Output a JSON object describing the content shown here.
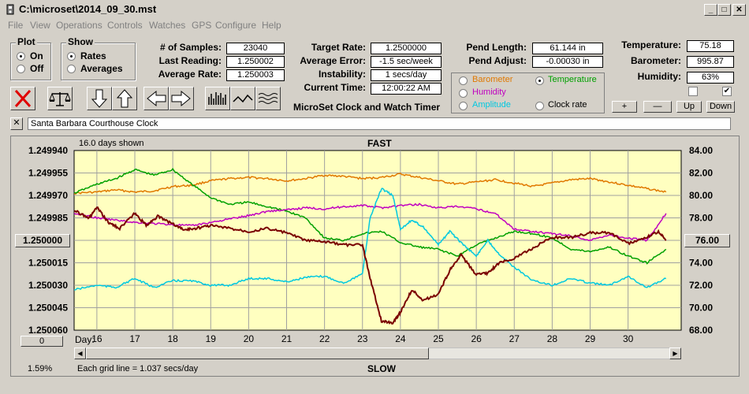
{
  "window": {
    "title": "C:\\microset\\2014_09_30.mst",
    "min": "_",
    "max": "□",
    "close": "✕"
  },
  "menu": [
    "File",
    "View",
    "Operations",
    "Controls",
    "Watches",
    "GPS",
    "Configure",
    "Help"
  ],
  "plot_group": {
    "title": "Plot",
    "on": "On",
    "off": "Off",
    "selected": "On"
  },
  "show_group": {
    "title": "Show",
    "rates": "Rates",
    "averages": "Averages",
    "selected": "Rates"
  },
  "stats": {
    "samples_label": "# of Samples:",
    "samples": "23040",
    "last_label": "Last Reading:",
    "last": "1.250002",
    "avg_label": "Average Rate:",
    "avg": "1.250003"
  },
  "rates": {
    "target_label": "Target Rate:",
    "target": "1.2500000",
    "avgerr_label": "Average Error:",
    "avgerr": "-1.5 sec/week",
    "instab_label": "Instability:",
    "instab": "1 secs/day",
    "time_label": "Current Time:",
    "time": "12:00:22 AM"
  },
  "app_caption": "MicroSet Clock and Watch Timer",
  "pendulum": {
    "length_label": "Pend Length:",
    "length": "61.144 in",
    "adjust_label": "Pend Adjust:",
    "adjust": "-0.00030 in"
  },
  "sensor_select": {
    "barometer": "Barometer",
    "temperature": "Temperature",
    "humidity": "Humidity",
    "amplitude": "Amplitude",
    "clockrate": "Clock rate",
    "selected": "Temperature",
    "colors": {
      "barometer": "#e07800",
      "temperature": "#00a000",
      "humidity": "#c000c0",
      "amplitude": "#00c8e0",
      "clockrate": "#000000"
    }
  },
  "environment": {
    "temp_label": "Temperature:",
    "temp": "75.18",
    "baro_label": "Barometer:",
    "baro": "995.87",
    "hum_label": "Humidity:",
    "hum": "63%",
    "check1": false,
    "check2": true
  },
  "scale_buttons": {
    "plus": "+",
    "minus": "—",
    "up": "Up",
    "down": "Down"
  },
  "clock_name": "Santa Barbara Courthouse Clock",
  "graph": {
    "days_shown": "16.0 days shown",
    "fast": "FAST",
    "slow": "SLOW",
    "center_left": "1.250000",
    "center_right": "76.00",
    "bottom_left_btn": "0",
    "percent": "1.59%",
    "grid_note": "Each grid line = 1.037 secs/day",
    "day_label": "Day:"
  },
  "chart_data": {
    "type": "line",
    "xlabel": "Day:",
    "x_ticks": [
      16,
      17,
      18,
      19,
      20,
      21,
      22,
      23,
      24,
      25,
      26,
      27,
      28,
      29,
      30
    ],
    "xlim": [
      15.4,
      31.4
    ],
    "y_left": {
      "ticks": [
        "1.249940",
        "1.249955",
        "1.249970",
        "1.249985",
        "1.250000",
        "1.250015",
        "1.250030",
        "1.250045",
        "1.250060"
      ],
      "lim": [
        1.24994,
        1.25006
      ]
    },
    "y_right": {
      "ticks": [
        "84.00",
        "82.00",
        "80.00",
        "78.00",
        "76.00",
        "74.00",
        "72.00",
        "70.00",
        "68.00"
      ],
      "lim": [
        68,
        84
      ]
    },
    "series": [
      {
        "name": "Barometer",
        "color": "#e07800",
        "axis": "right",
        "x": [
          15.4,
          16,
          16.5,
          17,
          17.5,
          18,
          18.5,
          19,
          19.5,
          20,
          20.5,
          21,
          21.5,
          22,
          22.5,
          23,
          23.5,
          24,
          24.5,
          25,
          25.5,
          26,
          26.5,
          27,
          27.5,
          28,
          28.5,
          29,
          29.5,
          30,
          30.5,
          31
        ],
        "y": [
          80.2,
          80.3,
          80.5,
          80.3,
          80.4,
          80.8,
          80.9,
          81.3,
          81.5,
          81.6,
          81.5,
          81.3,
          81.5,
          81.8,
          81.7,
          81.5,
          81.6,
          81.9,
          81.6,
          81.3,
          81.0,
          81.2,
          81.4,
          81.1,
          80.8,
          81.1,
          81.4,
          81.5,
          81.2,
          80.9,
          80.6,
          80.3
        ]
      },
      {
        "name": "Temperature",
        "color": "#00a000",
        "axis": "right",
        "x": [
          15.4,
          16,
          16.5,
          17,
          17.5,
          18,
          18.5,
          19,
          19.5,
          20,
          20.5,
          21,
          21.5,
          22,
          22.5,
          23,
          23.5,
          24,
          24.5,
          25,
          25.5,
          26,
          26.5,
          27,
          27.5,
          28,
          28.5,
          29,
          29.5,
          30,
          30.5,
          31
        ],
        "y": [
          80.2,
          81.0,
          81.5,
          82.3,
          81.8,
          82.3,
          81.0,
          79.8,
          79.2,
          79.4,
          79.0,
          78.6,
          78.0,
          76.2,
          76.0,
          76.6,
          76.8,
          75.8,
          75.4,
          75.2,
          74.6,
          75.6,
          76.2,
          76.8,
          76.6,
          76.2,
          75.2,
          75.0,
          75.4,
          74.6,
          74.0,
          75.2
        ]
      },
      {
        "name": "Humidity",
        "color": "#c000c0",
        "axis": "right",
        "x": [
          15.4,
          16,
          16.5,
          17,
          17.5,
          18,
          18.5,
          19,
          19.5,
          20,
          20.5,
          21,
          21.5,
          22,
          22.5,
          23,
          23.5,
          24,
          24.5,
          25,
          25.5,
          26,
          26.5,
          27,
          27.5,
          28,
          28.5,
          29,
          29.5,
          30,
          30.5,
          31
        ],
        "y": [
          78.4,
          78.0,
          77.8,
          77.6,
          77.5,
          77.4,
          77.3,
          77.6,
          77.9,
          78.2,
          78.6,
          78.7,
          78.9,
          78.8,
          79.0,
          79.1,
          78.9,
          79.1,
          79.2,
          78.9,
          79.0,
          78.8,
          78.4,
          77.0,
          76.8,
          76.6,
          76.4,
          76.0,
          76.5,
          76.2,
          76.0,
          78.4
        ]
      },
      {
        "name": "Amplitude",
        "color": "#00c8e0",
        "axis": "right",
        "x": [
          15.4,
          16,
          16.5,
          17,
          17.5,
          18,
          18.5,
          19,
          19.5,
          20,
          20.5,
          21,
          21.5,
          22,
          22.5,
          23,
          23.2,
          23.5,
          23.8,
          24,
          24.3,
          24.6,
          25,
          25.3,
          25.6,
          26,
          26.3,
          26.6,
          27,
          27.5,
          28,
          28.5,
          29,
          29.5,
          30,
          30.5,
          31
        ],
        "y": [
          71.6,
          72.0,
          71.8,
          72.6,
          71.8,
          72.4,
          72.4,
          72.0,
          72.0,
          72.6,
          72.6,
          72.3,
          72.7,
          72.8,
          72.2,
          73.0,
          78.0,
          80.6,
          80.0,
          77.0,
          77.8,
          77.2,
          75.6,
          76.8,
          75.8,
          74.6,
          76.0,
          74.8,
          73.6,
          72.4,
          72.0,
          72.6,
          72.2,
          72.0,
          72.8,
          71.8,
          72.6
        ]
      },
      {
        "name": "Clock rate",
        "color": "#7a0000",
        "axis": "left",
        "x": [
          15.4,
          15.8,
          16,
          16.3,
          16.6,
          17,
          17.3,
          17.6,
          18,
          18.3,
          18.6,
          19,
          19.5,
          20,
          20.5,
          21,
          21.5,
          22,
          22.5,
          23,
          23.2,
          23.5,
          23.8,
          24,
          24.3,
          24.6,
          25,
          25.3,
          25.6,
          26,
          26.3,
          26.6,
          27,
          27.5,
          28,
          28.5,
          29,
          29.5,
          30,
          30.5,
          30.8,
          31
        ],
        "y": [
          1.24998,
          1.249985,
          1.249978,
          1.249988,
          1.249992,
          1.249982,
          1.24999,
          1.249984,
          1.249989,
          1.249993,
          1.249992,
          1.24999,
          1.249992,
          1.249994,
          1.249992,
          1.249995,
          1.25,
          1.250001,
          1.250003,
          1.250003,
          1.250025,
          1.250054,
          1.250055,
          1.250048,
          1.250033,
          1.25004,
          1.250036,
          1.25002,
          1.25001,
          1.250023,
          1.250022,
          1.250015,
          1.250012,
          1.250005,
          1.249998,
          1.249998,
          1.249995,
          1.249995,
          1.250002,
          1.249998,
          1.249994,
          1.25
        ]
      }
    ]
  }
}
